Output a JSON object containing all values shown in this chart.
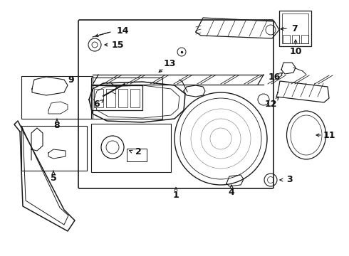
{
  "bg_color": "#ffffff",
  "line_color": "#1a1a1a",
  "label_color": "#111111",
  "figsize": [
    4.9,
    3.6
  ],
  "dpi": 100
}
